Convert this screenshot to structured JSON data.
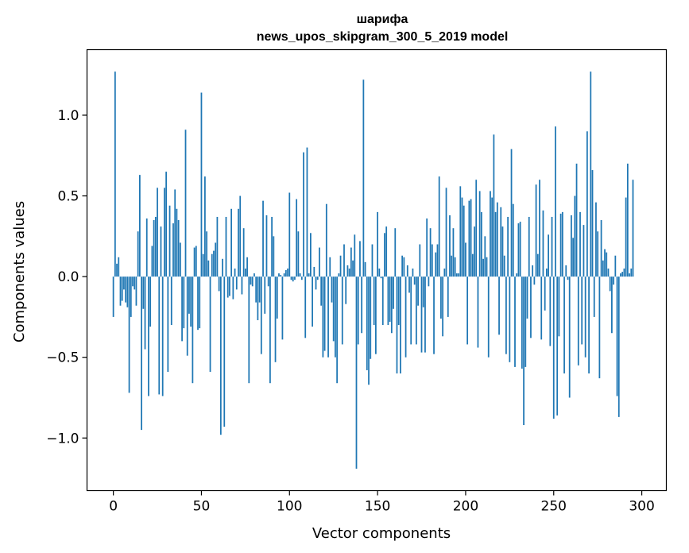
{
  "chart_data": {
    "type": "bar",
    "title_line1": "шарифа",
    "title_line2": "news_upos_skipgram_300_5_2019 model",
    "xlabel": "Vector components",
    "ylabel": "Components values",
    "xlim": [
      -14.95,
      313.95
    ],
    "ylim": [
      -1.326,
      1.406
    ],
    "xticks": [
      0,
      50,
      100,
      150,
      200,
      250,
      300
    ],
    "xtick_labels": [
      "0",
      "50",
      "100",
      "150",
      "200",
      "250",
      "300"
    ],
    "yticks": [
      -1.0,
      -0.5,
      0.0,
      0.5,
      1.0
    ],
    "ytick_labels": [
      "−1.0",
      "−0.5",
      "0.0",
      "0.5",
      "1.0"
    ],
    "bar_width": 0.8,
    "bar_color": "#1f77b4",
    "values": [
      -0.25,
      1.27,
      0.08,
      0.12,
      -0.18,
      -0.15,
      -0.08,
      -0.16,
      -0.19,
      -0.72,
      -0.25,
      -0.06,
      -0.08,
      -0.18,
      0.28,
      0.63,
      -0.95,
      -0.2,
      -0.45,
      0.36,
      -0.74,
      -0.31,
      0.19,
      0.35,
      0.37,
      0.55,
      -0.73,
      0.31,
      -0.74,
      0.55,
      0.65,
      -0.59,
      0.44,
      -0.3,
      0.33,
      0.54,
      0.42,
      0.35,
      0.21,
      -0.4,
      -0.32,
      0.91,
      -0.49,
      -0.23,
      -0.31,
      -0.66,
      0.18,
      0.19,
      -0.33,
      -0.32,
      1.14,
      0.14,
      0.62,
      0.28,
      0.1,
      -0.59,
      0.14,
      0.16,
      0.21,
      0.37,
      -0.09,
      -0.98,
      0.11,
      -0.93,
      0.37,
      -0.13,
      -0.12,
      0.42,
      -0.14,
      0.05,
      -0.08,
      0.42,
      0.5,
      -0.11,
      0.3,
      0.05,
      0.12,
      -0.66,
      -0.05,
      -0.06,
      0.02,
      -0.16,
      -0.27,
      -0.16,
      -0.48,
      0.47,
      -0.23,
      0.38,
      -0.06,
      -0.66,
      0.37,
      0.25,
      -0.53,
      -0.26,
      0.02,
      0.01,
      -0.39,
      0.02,
      0.04,
      0.05,
      0.52,
      -0.02,
      -0.03,
      -0.02,
      0.48,
      0.28,
      0.02,
      -0.02,
      0.77,
      -0.38,
      0.8,
      0.02,
      0.27,
      -0.31,
      0.06,
      -0.08,
      -0.02,
      0.18,
      -0.18,
      -0.5,
      -0.46,
      0.45,
      -0.5,
      0.12,
      -0.16,
      -0.4,
      -0.5,
      -0.66,
      0.02,
      0.13,
      -0.42,
      0.2,
      -0.17,
      0.07,
      0.05,
      0.18,
      0.1,
      0.26,
      -1.19,
      -0.42,
      0.22,
      -0.35,
      1.22,
      0.09,
      -0.58,
      -0.67,
      -0.51,
      0.2,
      -0.3,
      -0.48,
      0.4,
      0.05,
      -0.01,
      -0.3,
      0.27,
      0.31,
      -0.3,
      -0.28,
      -0.35,
      -0.2,
      0.3,
      -0.6,
      -0.3,
      -0.6,
      0.13,
      0.12,
      -0.5,
      0.07,
      -0.1,
      -0.42,
      0.05,
      -0.05,
      -0.42,
      -0.18,
      0.2,
      -0.47,
      -0.19,
      -0.47,
      0.36,
      -0.06,
      0.3,
      0.2,
      -0.48,
      0.15,
      0.2,
      0.62,
      -0.26,
      -0.37,
      0.05,
      0.55,
      -0.25,
      0.38,
      0.13,
      0.3,
      0.12,
      0.02,
      0.02,
      0.56,
      0.49,
      0.44,
      0.21,
      -0.42,
      0.47,
      0.48,
      0.14,
      0.31,
      0.6,
      -0.44,
      0.53,
      0.4,
      0.11,
      0.25,
      0.12,
      -0.5,
      0.53,
      0.49,
      0.88,
      0.4,
      0.46,
      -0.36,
      0.43,
      0.31,
      0.13,
      -0.48,
      0.37,
      -0.53,
      0.79,
      0.45,
      -0.56,
      0.02,
      0.33,
      0.34,
      -0.57,
      -0.92,
      -0.56,
      -0.26,
      0.37,
      -0.38,
      0.07,
      -0.05,
      0.57,
      0.14,
      0.6,
      -0.39,
      0.41,
      -0.21,
      0.05,
      0.26,
      -0.43,
      0.37,
      -0.88,
      0.93,
      -0.86,
      -0.37,
      0.39,
      0.4,
      -0.6,
      0.07,
      -0.02,
      -0.75,
      0.38,
      0.24,
      0.5,
      0.7,
      -0.55,
      0.4,
      -0.42,
      0.32,
      -0.5,
      0.9,
      -0.6,
      1.27,
      0.66,
      -0.25,
      0.46,
      0.28,
      -0.63,
      0.35,
      0.1,
      0.17,
      0.15,
      0.05,
      -0.09,
      -0.35,
      -0.05,
      0.13,
      -0.74,
      -0.87,
      0.02,
      0.03,
      0.05,
      0.49,
      0.7,
      0.02,
      0.05,
      0.6
    ]
  }
}
